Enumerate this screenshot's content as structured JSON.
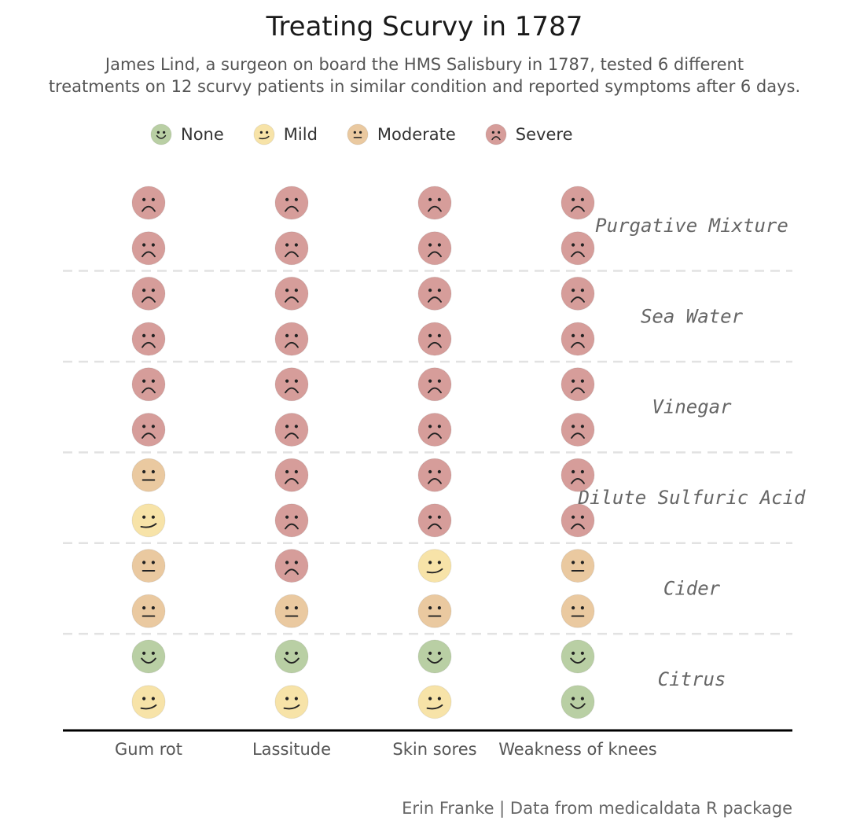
{
  "chart_data": {
    "type": "table",
    "title": "Treating Scurvy in 1787",
    "subtitle": [
      "James Lind, a surgeon on board the HMS Salisbury in 1787, tested 6 different",
      "treatments on 12 scurvy patients in similar condition and reported symptoms after 6 days."
    ],
    "legend": [
      {
        "label": "None",
        "face": "happy",
        "color": "#b9cfa4"
      },
      {
        "label": "Mild",
        "face": "smile",
        "color": "#f7e3a8"
      },
      {
        "label": "Moderate",
        "face": "neutral",
        "color": "#eac9a0"
      },
      {
        "label": "Severe",
        "face": "sad",
        "color": "#d69d9a"
      }
    ],
    "symptoms": [
      "Gum rot",
      "Lassitude",
      "Skin sores",
      "Weakness of knees"
    ],
    "treatments": [
      {
        "name": "Purgative Mixture",
        "patients": [
          [
            "Severe",
            "Severe",
            "Severe",
            "Severe"
          ],
          [
            "Severe",
            "Severe",
            "Severe",
            "Severe"
          ]
        ]
      },
      {
        "name": "Sea Water",
        "patients": [
          [
            "Severe",
            "Severe",
            "Severe",
            "Severe"
          ],
          [
            "Severe",
            "Severe",
            "Severe",
            "Severe"
          ]
        ]
      },
      {
        "name": "Vinegar",
        "patients": [
          [
            "Severe",
            "Severe",
            "Severe",
            "Severe"
          ],
          [
            "Severe",
            "Severe",
            "Severe",
            "Severe"
          ]
        ]
      },
      {
        "name": "Dilute Sulfuric Acid",
        "patients": [
          [
            "Moderate",
            "Severe",
            "Severe",
            "Severe"
          ],
          [
            "Mild",
            "Severe",
            "Severe",
            "Severe"
          ]
        ]
      },
      {
        "name": "Cider",
        "patients": [
          [
            "Moderate",
            "Severe",
            "Mild",
            "Moderate"
          ],
          [
            "Moderate",
            "Moderate",
            "Moderate",
            "Moderate"
          ]
        ]
      },
      {
        "name": "Citrus",
        "patients": [
          [
            "None",
            "None",
            "None",
            "None"
          ],
          [
            "Mild",
            "Mild",
            "Mild",
            "None"
          ]
        ]
      }
    ]
  },
  "caption": "Erin Franke | Data from medicaldata R package"
}
